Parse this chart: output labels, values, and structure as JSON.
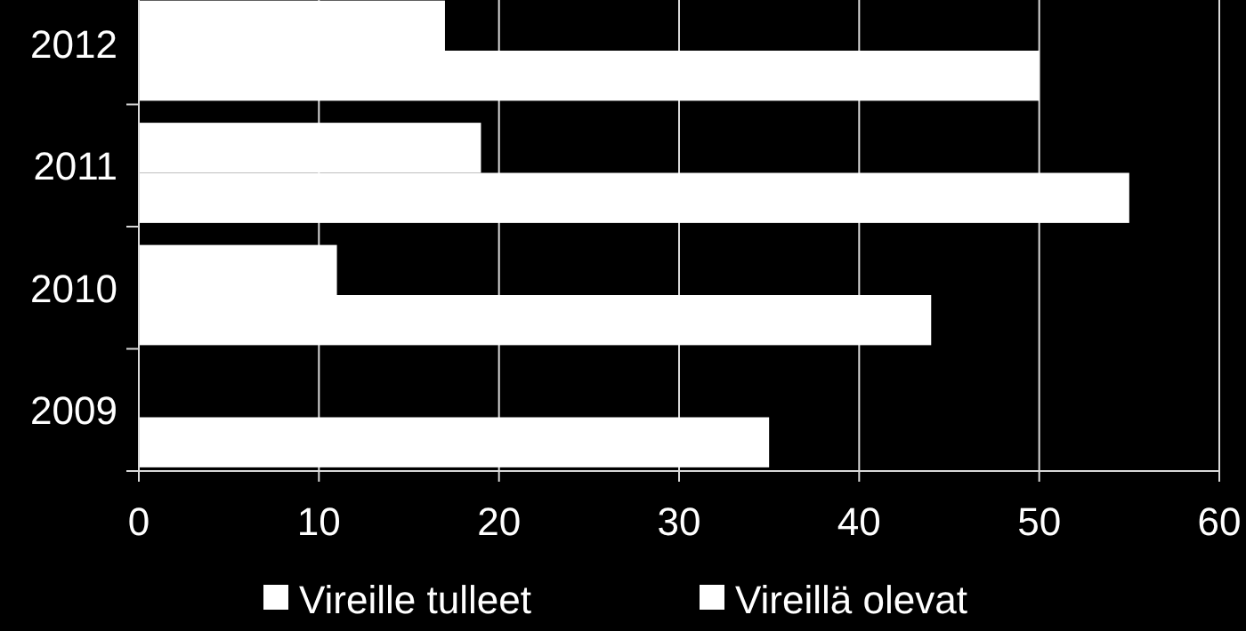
{
  "chart_data": {
    "type": "bar",
    "orientation": "horizontal",
    "categories": [
      "2012",
      "2011",
      "2010",
      "2009"
    ],
    "series": [
      {
        "name": "Vireille tulleet",
        "color": "#ffffff",
        "values": [
          17,
          19,
          11,
          null
        ]
      },
      {
        "name": "Vireillä olevat",
        "color": "#ffffff",
        "values": [
          50,
          55,
          44,
          35
        ]
      }
    ],
    "xlim": [
      0,
      60
    ],
    "xticks": [
      0,
      10,
      20,
      30,
      40,
      50,
      60
    ],
    "grid": "x",
    "legend": "bottom"
  }
}
